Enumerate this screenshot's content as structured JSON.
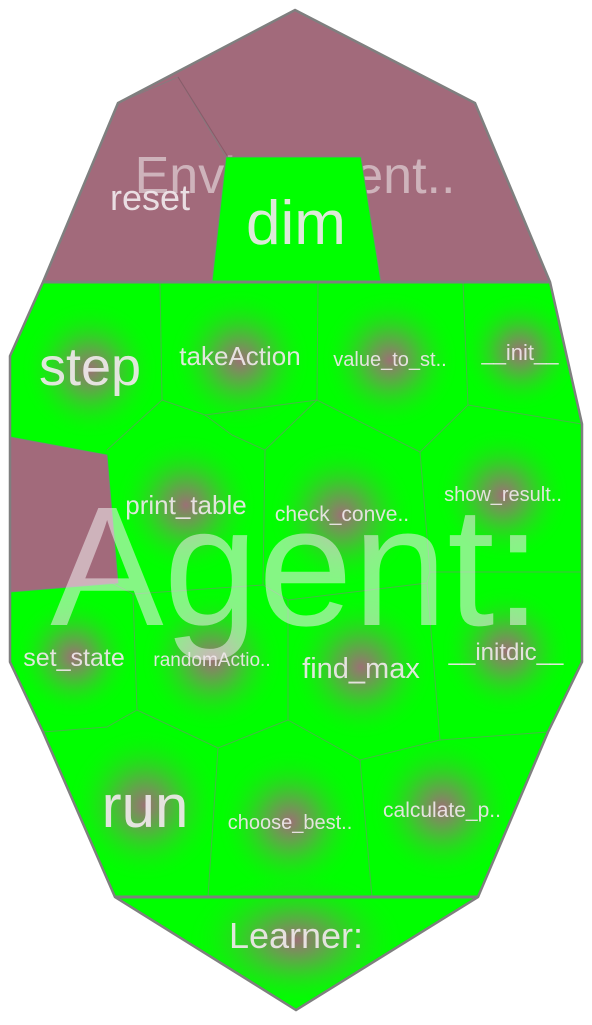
{
  "colors": {
    "environment": "#a26a7b",
    "agent": "#00ff00",
    "learner": "#00ff00",
    "border": "#7f7f7f",
    "glow": "#a26a7b"
  },
  "environment": {
    "title": "Environment..",
    "reset": "reset",
    "dim": "dim"
  },
  "agent": {
    "title": "Agent:",
    "methods": {
      "step": "step",
      "take_action": "takeAction",
      "value_to_state": "value_to_st..",
      "init": "__init__",
      "print_table": "print_table",
      "check_converge": "check_conve..",
      "show_result": "show_result..",
      "set_state": "set_state",
      "random_action": "randomActio..",
      "find_max": "find_max",
      "initdic": "__initdic__",
      "run": "run",
      "choose_best": "choose_best..",
      "calculate_p": "calculate_p.."
    }
  },
  "learner": {
    "title": "Learner:"
  }
}
